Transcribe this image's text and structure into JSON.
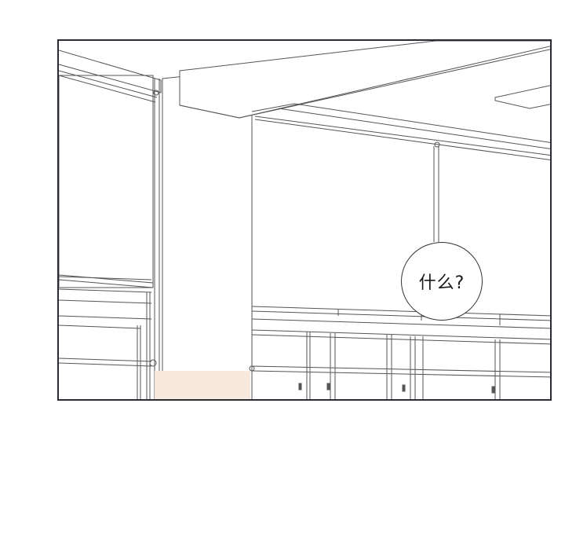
{
  "speech_bubble": {
    "text": "什么?"
  },
  "colors": {
    "panel_border": "#2b2b33",
    "line_art": "#555555",
    "pillar_wall_tint": "#f8e9df",
    "background": "#ffffff"
  }
}
